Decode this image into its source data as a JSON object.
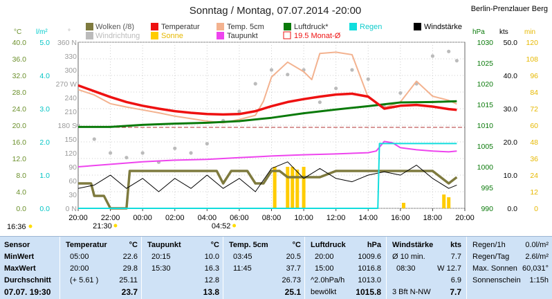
{
  "header": {
    "title": "Sonntag / Montag, 07.07.2014  -20:00",
    "station": "Berlin-Prenzlauer Berg"
  },
  "legend": {
    "wolken": "Wolken (/8)",
    "windrichtung": "Windrichtung",
    "temperatur": "Temperatur",
    "sonne": "Sonne",
    "temp5cm": "Temp. 5cm",
    "taupunkt": "Taupunkt",
    "luftdruck": "Luftdruck*",
    "monat": "19.5 Monat-Ø",
    "regen": "Regen",
    "windstaerke": "Windstärke"
  },
  "axes_units": {
    "celsius": "°C",
    "rain": "l/m²",
    "degree": "°",
    "hpa": "hPa",
    "kts": "kts",
    "min": "min"
  },
  "colors": {
    "temperature": "#ee1111",
    "temp5cm": "#f3b28f",
    "pressure": "#0a7a0a",
    "dewpoint": "#ee44ee",
    "rain": "#11dddd",
    "sun": "#ffcc00",
    "clouds": "#7e7a3e",
    "wind_dir": "#bbbbbb",
    "wind": "#000000",
    "panel": "#cfe2f6"
  },
  "chart_data": {
    "type": "line",
    "x_ticks": [
      "20:00",
      "22:00",
      "00:00",
      "02:00",
      "04:00",
      "06:00",
      "08:00",
      "10:00",
      "12:00",
      "14:00",
      "16:00",
      "18:00",
      "20:00"
    ],
    "x_extra_ticks": [
      "21:30",
      "04:52"
    ],
    "time_markers": [
      "16:36"
    ],
    "y_ticks": {
      "celsius": [
        "40.0",
        "36.0",
        "32.0",
        "28.0",
        "24.0",
        "20.0",
        "16.0",
        "12.0",
        "8.0",
        "4.0",
        "0.0"
      ],
      "rain": [
        "5.0",
        "4.0",
        "3.0",
        "2.0",
        "1.0",
        "0.0"
      ],
      "wind_dir": [
        "360 N",
        "330",
        "300",
        "270 W",
        "240",
        "210",
        "180 S",
        "150",
        "120",
        "90",
        "60",
        "30",
        "0 N"
      ],
      "hpa": [
        "1030",
        "1025",
        "1020",
        "1015",
        "1010",
        "1005",
        "1000",
        "995",
        "990"
      ],
      "kts": [
        "50.0",
        "40.0",
        "30.0",
        "20.0",
        "10.0",
        "0.0"
      ],
      "min": [
        "120",
        "108",
        "96",
        "84",
        "72",
        "60",
        "48",
        "36",
        "24",
        "12",
        "0"
      ]
    },
    "ylim_celsius": [
      0,
      40
    ],
    "ylim_hpa": [
      990,
      1030
    ],
    "ylim_kts": [
      0,
      50
    ],
    "ylim_min": [
      0,
      120
    ],
    "monthly_mean_celsius": 19.5,
    "series": [
      {
        "name": "Temperatur",
        "axis": "celsius",
        "x": [
          20,
          21,
          22,
          23,
          0,
          1,
          2,
          3,
          4,
          5,
          6,
          7,
          8,
          9,
          10,
          11,
          12,
          13,
          14,
          15,
          16,
          17,
          18,
          19,
          19.5
        ],
        "values": [
          29.6,
          28.2,
          26.8,
          25.6,
          24.7,
          24.0,
          23.4,
          23.0,
          22.7,
          22.6,
          22.7,
          23.4,
          24.6,
          25.6,
          26.3,
          26.9,
          27.4,
          27.6,
          26.9,
          24.0,
          24.7,
          24.9,
          24.5,
          23.9,
          23.7
        ]
      },
      {
        "name": "Temp. 5cm",
        "axis": "celsius",
        "x": [
          20,
          21,
          22,
          23,
          0,
          1,
          2,
          3,
          4,
          5,
          6,
          7,
          7.5,
          8,
          9,
          10,
          10.5,
          11,
          12,
          13,
          14,
          14.5,
          15,
          16,
          17,
          18,
          19,
          19.5
        ],
        "values": [
          28.6,
          27.3,
          25.2,
          24.4,
          23.7,
          23.0,
          22.2,
          21.6,
          21.0,
          20.6,
          21.4,
          22.4,
          25.8,
          31.6,
          35.2,
          32.9,
          31.0,
          37.3,
          37.6,
          37.0,
          26.7,
          25.4,
          24.2,
          25.6,
          30.6,
          27.0,
          26.0,
          25.1
        ]
      },
      {
        "name": "Taupunkt",
        "axis": "celsius",
        "x": [
          20,
          22,
          0,
          2,
          4,
          6,
          8,
          10,
          12,
          14,
          14.5,
          15,
          15.5,
          16,
          17,
          18,
          19,
          19.5
        ],
        "values": [
          10.0,
          10.6,
          11.2,
          11.6,
          11.8,
          12.2,
          12.6,
          12.9,
          13.1,
          13.4,
          13.8,
          16.1,
          15.8,
          14.6,
          14.1,
          13.8,
          13.6,
          13.8
        ]
      },
      {
        "name": "Luftdruck*",
        "axis": "hpa",
        "x": [
          20,
          22,
          0,
          2,
          4,
          6,
          8,
          10,
          12,
          14,
          16,
          18,
          19.5
        ],
        "values": [
          1009.6,
          1009.6,
          1010.1,
          1010.4,
          1010.6,
          1011.0,
          1011.8,
          1012.9,
          1013.8,
          1014.6,
          1015.5,
          1015.6,
          1015.8
        ]
      },
      {
        "name": "Regen",
        "axis": "rain",
        "x": [
          20,
          14.6,
          14.7,
          19.5
        ],
        "values": [
          0,
          0,
          1.95,
          1.95
        ]
      },
      {
        "name": "Wolken (/8)",
        "axis": "celsius",
        "x": [
          20,
          20.8,
          21.0,
          21.6,
          22.0,
          23.0,
          23.2,
          0,
          1,
          2,
          3,
          4,
          4.6,
          5.0,
          5.5,
          6.5,
          7.0,
          7.5,
          8,
          8.5,
          9.0,
          9.5,
          10,
          11,
          12,
          13,
          14,
          15,
          16,
          17,
          18,
          18.5,
          19,
          19.5
        ],
        "values": [
          4,
          4,
          2,
          2,
          0,
          0,
          6,
          6,
          6,
          6,
          6,
          6,
          6,
          4,
          6,
          6,
          4,
          4,
          6,
          6,
          5,
          5,
          5,
          5,
          6,
          6,
          6,
          6,
          6,
          6,
          6,
          5,
          4,
          5
        ]
      },
      {
        "name": "Windstärke",
        "axis": "kts",
        "x": [
          20,
          21,
          22,
          23,
          0,
          1,
          2,
          3,
          4,
          5,
          6,
          7,
          8,
          9,
          10,
          11,
          12,
          13,
          14,
          15,
          16,
          17,
          18,
          19,
          19.5
        ],
        "values": [
          6,
          7,
          10,
          6,
          9,
          5,
          9,
          6,
          10,
          6,
          9,
          5,
          12,
          14,
          9,
          12,
          9,
          8,
          10,
          11,
          10,
          13,
          9,
          6,
          7
        ]
      },
      {
        "name": "Windrichtung",
        "axis": "wind_dir",
        "x": [
          20,
          21,
          22,
          23,
          0,
          1,
          2,
          3,
          4,
          5,
          6,
          7,
          8,
          9,
          10,
          11,
          12,
          13,
          14,
          15,
          16,
          17,
          18,
          19,
          19.5
        ],
        "values": [
          180,
          150,
          120,
          110,
          120,
          100,
          130,
          120,
          140,
          190,
          210,
          270,
          300,
          290,
          300,
          230,
          260,
          300,
          280,
          220,
          250,
          270,
          330,
          340,
          320
        ]
      },
      {
        "name": "Sonne",
        "axis": "min",
        "x": [
          8.2,
          9.0,
          9.3,
          9.6,
          10.0,
          16.2,
          18.7,
          19.0
        ],
        "values": [
          30,
          30,
          30,
          28,
          30,
          4,
          10,
          8
        ]
      }
    ]
  },
  "table": {
    "sensor": {
      "header": "Sensor",
      "labels": [
        "MinWert",
        "MaxWert",
        "Durchschnitt"
      ],
      "now": "07.07. 19:30"
    },
    "temperatur": {
      "header": "Temperatur",
      "unit": "°C",
      "rows": [
        [
          "05:00",
          "22.6"
        ],
        [
          "20:00",
          "29.8"
        ],
        [
          "(+ 5.61 )",
          "25.11"
        ]
      ],
      "now": "23.7"
    },
    "taupunkt": {
      "header": "Taupunkt",
      "unit": "°C",
      "rows": [
        [
          "20:15",
          "10.0"
        ],
        [
          "15:30",
          "16.3"
        ],
        [
          "",
          "12.8"
        ]
      ],
      "now": "13.8"
    },
    "temp5cm": {
      "header": "Temp. 5cm",
      "unit": "°C",
      "rows": [
        [
          "03:45",
          "20.5"
        ],
        [
          "11:45",
          "37.7"
        ],
        [
          "",
          "26.73"
        ]
      ],
      "now": "25.1"
    },
    "luftdruck": {
      "header": "Luftdruck",
      "unit": "hPa",
      "rows": [
        [
          "20:00",
          "1009.6"
        ],
        [
          "15:00",
          "1016.8"
        ],
        [
          "^2.0hPa/h",
          "1013.0"
        ]
      ],
      "now_label": "bewölkt",
      "now": "1015.8"
    },
    "wind": {
      "header": "Windstärke",
      "unit": "kts",
      "rows": [
        [
          "Ø 10 min.",
          "7.7"
        ],
        [
          "08:30",
          "W 12.7"
        ],
        [
          "",
          "6.9"
        ]
      ],
      "now_label": "3 Bft N-NW",
      "now": "7.7"
    },
    "regen": {
      "rows": [
        [
          "Regen/1h",
          "0.0l/m²"
        ],
        [
          "Regen/Tag",
          "2.6l/m²"
        ],
        [
          "Max. Sonnen",
          "60,031°"
        ],
        [
          "Sonnenschein",
          "1:15h"
        ]
      ]
    }
  }
}
